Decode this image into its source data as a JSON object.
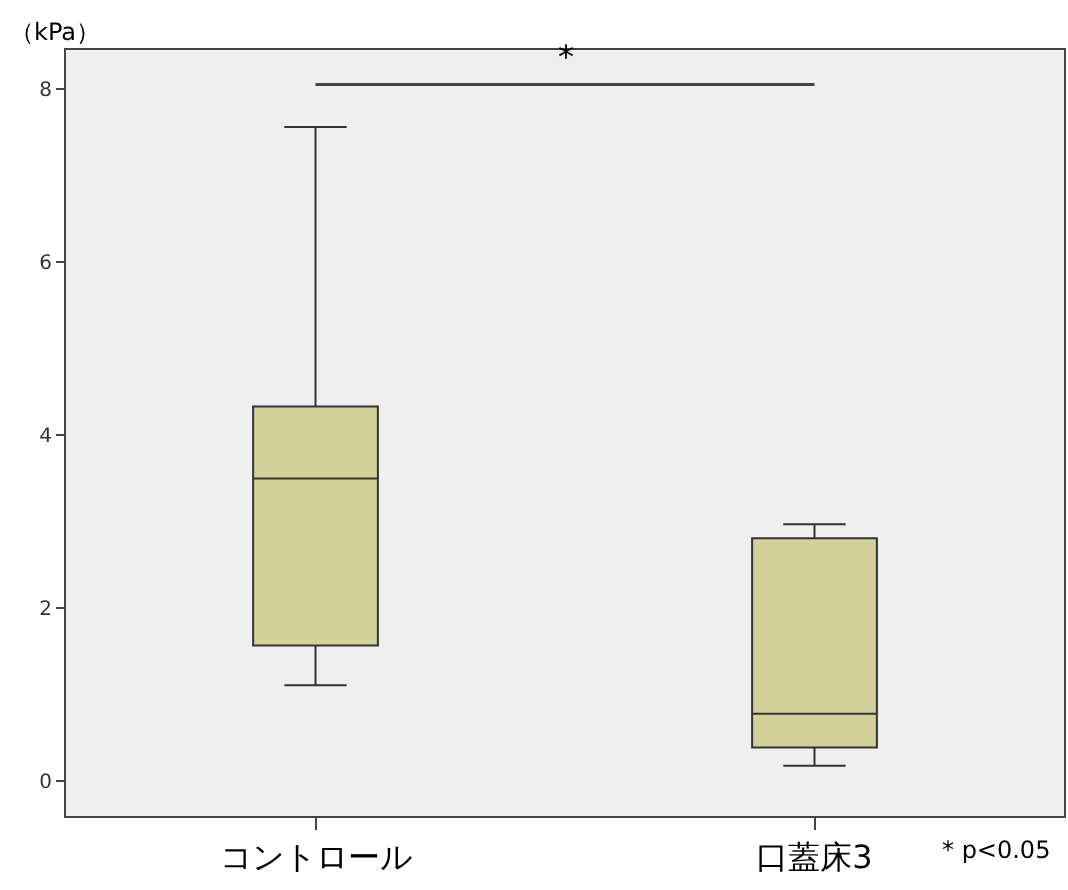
{
  "chart_data": {
    "type": "box",
    "ylabel": "（kPa）",
    "categories": [
      "コントロール",
      "口蓋床3"
    ],
    "boxes": [
      {
        "low": 1.11,
        "q1": 1.57,
        "median": 3.5,
        "q3": 4.33,
        "high": 7.56
      },
      {
        "low": 0.18,
        "q1": 0.39,
        "median": 0.78,
        "q3": 2.81,
        "high": 2.97
      }
    ],
    "color": "#d3cf98",
    "ylim": [
      -0.4,
      8.45
    ],
    "yticks": [
      0,
      2,
      4,
      6,
      8
    ],
    "grid": false,
    "annotations": [
      "*",
      "* p<0.05"
    ]
  }
}
